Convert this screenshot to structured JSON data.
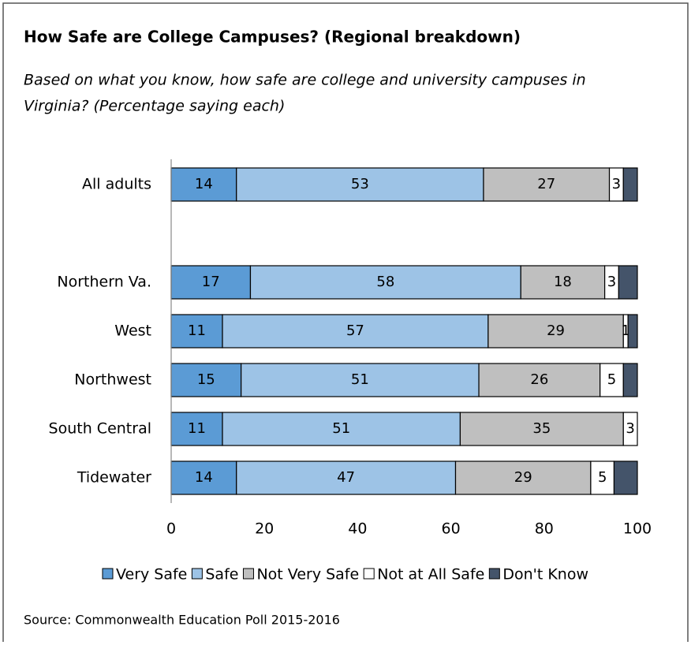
{
  "chart_data": {
    "type": "stacked_barh",
    "title": "How Safe are College Campuses?  (Regional breakdown)",
    "subtitle": [
      "Based on what you know, how safe are college and university campuses in",
      "Virginia? (Percentage saying each)"
    ],
    "source": "Source: Commonwealth Education Poll 2015-2016",
    "categories": [
      "All adults",
      null,
      "Northern Va.",
      "West",
      "Northwest",
      "South Central",
      "Tidewater"
    ],
    "series": [
      {
        "name": "Very Safe",
        "color": "#5b9bd5",
        "values": [
          14,
          null,
          17,
          11,
          15,
          11,
          14
        ],
        "value_labels": [
          "14",
          null,
          "17",
          "11",
          "15",
          "11",
          "14"
        ]
      },
      {
        "name": "Safe",
        "color": "#9dc3e6",
        "values": [
          53,
          null,
          58,
          57,
          51,
          51,
          47
        ],
        "value_labels": [
          "53",
          null,
          "58",
          "57",
          "51",
          "51",
          "47"
        ]
      },
      {
        "name": "Not Very Safe",
        "color": "#bfbfbf",
        "values": [
          27,
          null,
          18,
          29,
          26,
          35,
          29
        ],
        "value_labels": [
          "27",
          null,
          "18",
          "29",
          "26",
          "35",
          "29"
        ]
      },
      {
        "name": "Not at All Safe",
        "color": "#ffffff",
        "values": [
          3,
          null,
          3,
          1,
          5,
          3,
          5
        ],
        "value_labels": [
          "3",
          null,
          "3",
          "1",
          "5",
          "3",
          "5"
        ]
      },
      {
        "name": "Don't Know",
        "color": "#44546a",
        "values": [
          3,
          null,
          4,
          2,
          3,
          0,
          5
        ]
      }
    ],
    "xlim": [
      0,
      100
    ],
    "xticks": [
      0,
      20,
      40,
      60,
      80,
      100
    ],
    "grid": false,
    "legend": "bottom"
  }
}
